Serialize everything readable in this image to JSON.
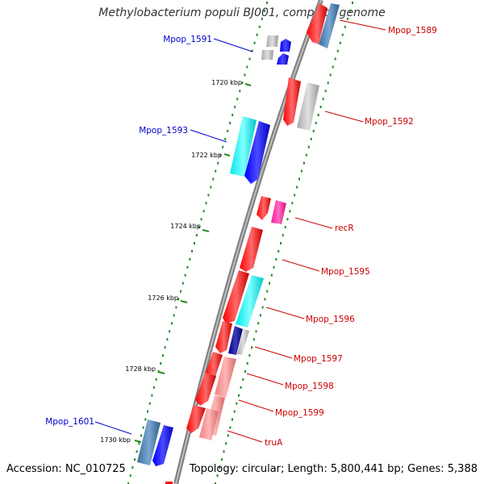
{
  "title": "Methylobacterium populi BJ001, complete genome",
  "accession": "Accession: NC_010725",
  "topology": "Topology: circular; Length: 5,800,441 bp; Genes: 5,388",
  "colors": {
    "backbone": "#7f7f7f",
    "tick_dots": "#228b22",
    "label_red": "#cc0000",
    "label_blue": "#0000cc",
    "gene_red": "#ff0000",
    "gene_blue": "#0000ff",
    "gene_cyan": "#00ffff",
    "gene_grey": "#c0c0c0",
    "gene_steel": "#4682b4",
    "gene_pink": "#ff1493",
    "gene_salmon": "#f08080",
    "gene_navy": "#000080"
  },
  "ticks": [
    "1720 kbp",
    "1722 kbp",
    "1724 kbp",
    "1726 kbp",
    "1728 kbp",
    "1730 kbp"
  ],
  "labels": {
    "mpop_1589": "Mpop_1589",
    "mpop_1591": "Mpop_1591",
    "mpop_1592": "Mpop_1592",
    "mpop_1593": "Mpop_1593",
    "recR": "recR",
    "mpop_1595": "Mpop_1595",
    "mpop_1596": "Mpop_1596",
    "mpop_1597": "Mpop_1597",
    "mpop_1598": "Mpop_1598",
    "mpop_1599": "Mpop_1599",
    "mpop_1601": "Mpop_1601",
    "truA": "truA"
  }
}
